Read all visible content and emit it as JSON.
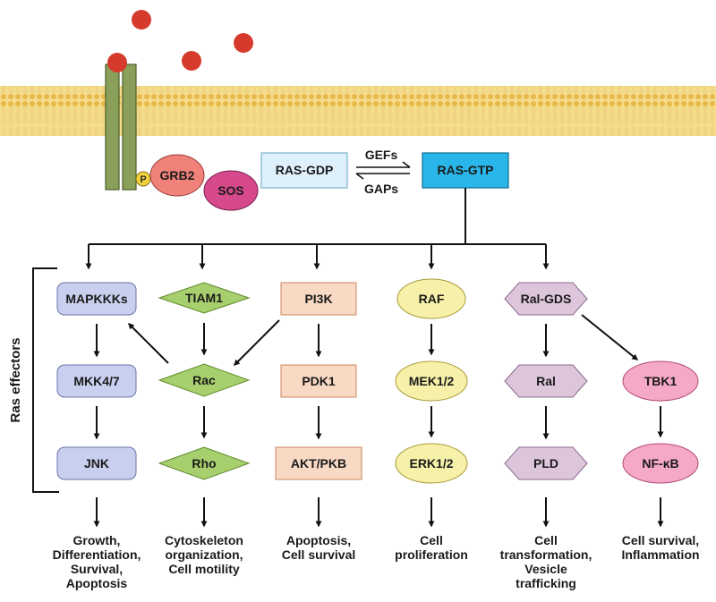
{
  "membrane": {
    "phosphate_label": "P",
    "adaptor_label": "GRB2",
    "gef_protein_label": "SOS"
  },
  "ras": {
    "inactive_label": "RAS-GDP",
    "active_label": "RAS-GTP",
    "forward_label": "GEFs",
    "reverse_label": "GAPs"
  },
  "side_label": "Ras effectors",
  "pathways": [
    {
      "nodes": [
        "MAPKKKs",
        "MKK4/7",
        "JNK"
      ],
      "outcome": [
        "Growth,",
        "Differentiation,",
        "Survival,",
        "Apoptosis"
      ]
    },
    {
      "nodes": [
        "TIAM1",
        "Rac",
        "Rho"
      ],
      "outcome": [
        "Cytoskeleton",
        "organization,",
        "Cell motility"
      ]
    },
    {
      "nodes": [
        "PI3K",
        "PDK1",
        "AKT/PKB"
      ],
      "outcome": [
        "Apoptosis,",
        "Cell survival"
      ]
    },
    {
      "nodes": [
        "RAF",
        "MEK1/2",
        "ERK1/2"
      ],
      "outcome": [
        "Cell",
        "proliferation"
      ]
    },
    {
      "nodes": [
        "Ral-GDS",
        "Ral",
        "PLD"
      ],
      "outcome": [
        "Cell",
        "transformation,",
        "Vesicle",
        "trafficking"
      ]
    },
    {
      "nodes": [
        "TBK1",
        "NF-κB"
      ],
      "outcome": [
        "Cell survival,",
        "Inflammation"
      ]
    }
  ],
  "colors": {
    "ligand": "#d63a2c",
    "membrane": "#f5dc8a",
    "receptor": "#8aa05a",
    "grb2": "#f0827a",
    "sos": "#d64a8c",
    "ras_gdp": "#ddf0fb",
    "ras_gtp": "#29b6e8",
    "mapk": "#c9cfee",
    "rac": "#a8cf6e",
    "pi3k": "#f8d9c4",
    "raf": "#f6f0a8",
    "ral": "#ddc6dc",
    "tbk": "#f6a9c6"
  }
}
